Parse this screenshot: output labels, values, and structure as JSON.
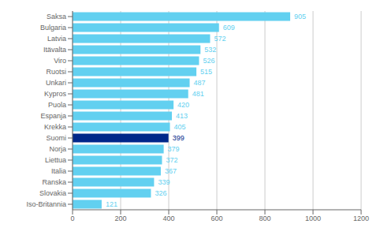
{
  "chart_data": {
    "type": "bar",
    "orientation": "horizontal",
    "categories": [
      "Saksa",
      "Bulgaria",
      "Latvia",
      "Itävalta",
      "Viro",
      "Ruotsi",
      "Unkari",
      "Kypros",
      "Puola",
      "Espanja",
      "Krekka",
      "Suomi",
      "Norja",
      "Liettua",
      "Italia",
      "Ranska",
      "Slovakia",
      "Iso-Britannia"
    ],
    "values": [
      905,
      609,
      572,
      532,
      526,
      515,
      487,
      481,
      420,
      413,
      405,
      399,
      379,
      372,
      367,
      339,
      326,
      121
    ],
    "colors": [
      "#62D0F0",
      "#62D0F0",
      "#62D0F0",
      "#62D0F0",
      "#62D0F0",
      "#62D0F0",
      "#62D0F0",
      "#62D0F0",
      "#62D0F0",
      "#62D0F0",
      "#62D0F0",
      "#00278A",
      "#62D0F0",
      "#62D0F0",
      "#62D0F0",
      "#62D0F0",
      "#62D0F0",
      "#62D0F0"
    ],
    "xlim": [
      0,
      1200
    ],
    "xticks": [
      0,
      200,
      400,
      600,
      800,
      1000,
      1200
    ],
    "data_labels": true,
    "grid": true
  }
}
